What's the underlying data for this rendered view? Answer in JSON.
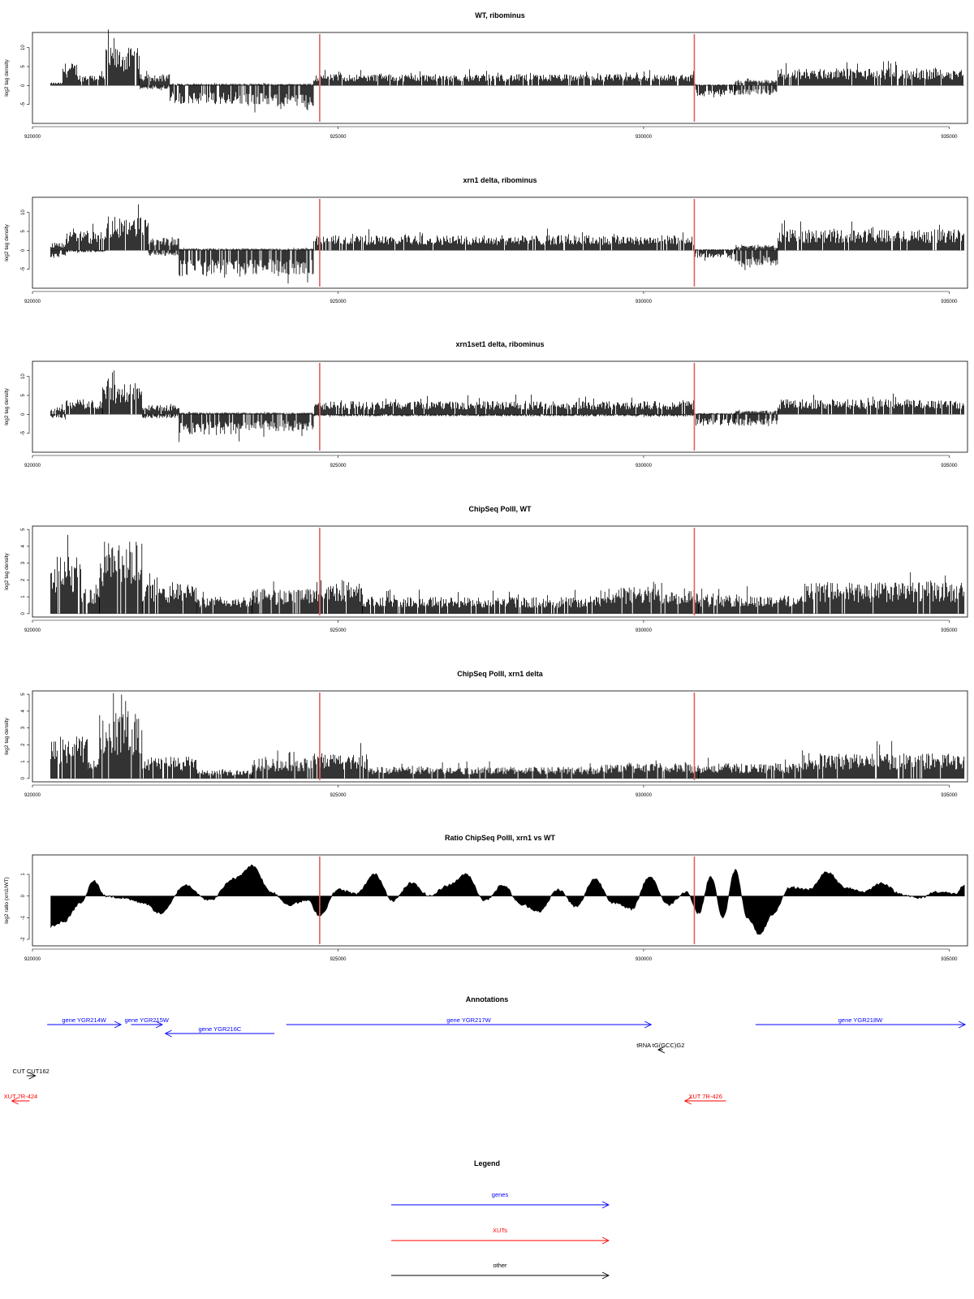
{
  "colors": {
    "genes": "#0000ff",
    "xuts": "#ff0000",
    "other": "#000000",
    "marker": "#e06060",
    "bars": "#000000"
  },
  "x_axis": {
    "range": [
      920000,
      935300
    ],
    "ticks": [
      920000,
      925000,
      930000,
      935000
    ],
    "tick_labels": [
      "920000",
      "925000",
      "930000",
      "935000"
    ]
  },
  "markers": [
    924700,
    930830
  ],
  "chart_data": [
    {
      "type": "bar",
      "title": "WT, ribominus",
      "ylabel": "log2 tag density",
      "ylim": [
        -10,
        14
      ],
      "yticks": [
        -5,
        0,
        5,
        10
      ],
      "ytick_labels": [
        "-5",
        "0",
        "5",
        "10"
      ],
      "x_range": [
        920300,
        935250
      ],
      "segments": [
        {
          "x": [
            920300,
            920500
          ],
          "lo": 0,
          "hi": 0.8
        },
        {
          "x": [
            920500,
            920750
          ],
          "lo": 0,
          "hi": 6
        },
        {
          "x": [
            920750,
            921200
          ],
          "lo": 0,
          "hi": 3
        },
        {
          "x": [
            921200,
            921750
          ],
          "lo": 0,
          "hi": 10
        },
        {
          "x": [
            921750,
            922250
          ],
          "lo": -1,
          "hi": 3
        },
        {
          "x": [
            922250,
            923400
          ],
          "lo": -5,
          "hi": 0.5
        },
        {
          "x": [
            923400,
            924600
          ],
          "lo": -5.5,
          "hi": 0.5
        },
        {
          "x": [
            924600,
            930830
          ],
          "lo": 0,
          "hi": 3
        },
        {
          "x": [
            930830,
            931500
          ],
          "lo": -3,
          "hi": 0.3
        },
        {
          "x": [
            931500,
            932200
          ],
          "lo": -2.5,
          "hi": 1.5
        },
        {
          "x": [
            932200,
            935250
          ],
          "lo": 0,
          "hi": 4.5
        }
      ]
    },
    {
      "type": "bar",
      "title": "xrn1 delta, ribominus",
      "ylabel": "log2 tag density",
      "ylim": [
        -10,
        14
      ],
      "yticks": [
        -5,
        0,
        5,
        10
      ],
      "ytick_labels": [
        "-5",
        "0",
        "5",
        "10"
      ],
      "x_range": [
        920300,
        935250
      ],
      "segments": [
        {
          "x": [
            920300,
            920550
          ],
          "lo": -2,
          "hi": 2
        },
        {
          "x": [
            920550,
            921200
          ],
          "lo": -0.5,
          "hi": 5
        },
        {
          "x": [
            921200,
            921900
          ],
          "lo": 0,
          "hi": 9
        },
        {
          "x": [
            921900,
            922400
          ],
          "lo": -1.5,
          "hi": 3.5
        },
        {
          "x": [
            922400,
            923400
          ],
          "lo": -7,
          "hi": 0.5
        },
        {
          "x": [
            923400,
            924600
          ],
          "lo": -6.5,
          "hi": 0.5
        },
        {
          "x": [
            924600,
            930830
          ],
          "lo": 0,
          "hi": 4
        },
        {
          "x": [
            930830,
            931500
          ],
          "lo": -2,
          "hi": 0.3
        },
        {
          "x": [
            931500,
            932200
          ],
          "lo": -4,
          "hi": 1.5
        },
        {
          "x": [
            932200,
            935250
          ],
          "lo": 0,
          "hi": 5.5
        }
      ]
    },
    {
      "type": "bar",
      "title": "xrn1set1 delta, ribominus",
      "ylabel": "log2 tag density",
      "ylim": [
        -10,
        14
      ],
      "yticks": [
        -5,
        0,
        5,
        10
      ],
      "ytick_labels": [
        "-5",
        "0",
        "5",
        "10"
      ],
      "x_range": [
        920300,
        935250
      ],
      "segments": [
        {
          "x": [
            920300,
            920550
          ],
          "lo": -1,
          "hi": 2
        },
        {
          "x": [
            920550,
            921150
          ],
          "lo": 0,
          "hi": 4
        },
        {
          "x": [
            921150,
            921800
          ],
          "lo": 0,
          "hi": 8
        },
        {
          "x": [
            921800,
            922400
          ],
          "lo": -1,
          "hi": 2.5
        },
        {
          "x": [
            922400,
            923400
          ],
          "lo": -5.5,
          "hi": 0.5
        },
        {
          "x": [
            923400,
            924600
          ],
          "lo": -4.5,
          "hi": 0.5
        },
        {
          "x": [
            924600,
            930830
          ],
          "lo": -0.5,
          "hi": 3.5
        },
        {
          "x": [
            930830,
            931500
          ],
          "lo": -3,
          "hi": 0.3
        },
        {
          "x": [
            931500,
            932200
          ],
          "lo": -3,
          "hi": 1
        },
        {
          "x": [
            932200,
            935250
          ],
          "lo": 0,
          "hi": 4
        }
      ]
    },
    {
      "type": "bar",
      "title": "ChipSeq PolII, WT",
      "ylabel": "log2 tag density",
      "ylim": [
        -0.2,
        5.2
      ],
      "yticks": [
        0,
        1,
        2,
        3,
        4,
        5
      ],
      "ytick_labels": [
        "0",
        "1",
        "2",
        "3",
        "4",
        "5"
      ],
      "x_range": [
        920300,
        935250
      ],
      "segments": [
        {
          "x": [
            920300,
            920800
          ],
          "lo": 0,
          "hi": 3.5
        },
        {
          "x": [
            920800,
            921100
          ],
          "lo": 0,
          "hi": 1.5
        },
        {
          "x": [
            921100,
            921800
          ],
          "lo": 0,
          "hi": 4.3
        },
        {
          "x": [
            921800,
            922700
          ],
          "lo": 0,
          "hi": 1.8
        },
        {
          "x": [
            922700,
            923600
          ],
          "lo": 0,
          "hi": 1
        },
        {
          "x": [
            923600,
            924600
          ],
          "lo": 0,
          "hi": 1.5
        },
        {
          "x": [
            924600,
            925400
          ],
          "lo": 0,
          "hi": 2
        },
        {
          "x": [
            925400,
            929300
          ],
          "lo": 0,
          "hi": 1
        },
        {
          "x": [
            929300,
            930900
          ],
          "lo": 0,
          "hi": 1.6
        },
        {
          "x": [
            930900,
            932600
          ],
          "lo": 0,
          "hi": 1.1
        },
        {
          "x": [
            932600,
            935250
          ],
          "lo": 0,
          "hi": 1.9
        }
      ]
    },
    {
      "type": "bar",
      "title": "ChipSeq PolII, xrn1 delta",
      "ylabel": "log2 tag density",
      "ylim": [
        -0.2,
        5.2
      ],
      "yticks": [
        0,
        1,
        2,
        3,
        4,
        5
      ],
      "ytick_labels": [
        "0",
        "1",
        "2",
        "3",
        "4",
        "5"
      ],
      "x_range": [
        920300,
        935250
      ],
      "segments": [
        {
          "x": [
            920300,
            920900
          ],
          "lo": 0,
          "hi": 2.5
        },
        {
          "x": [
            920900,
            921100
          ],
          "lo": 0,
          "hi": 1.2
        },
        {
          "x": [
            921100,
            921800
          ],
          "lo": 0,
          "hi": 4
        },
        {
          "x": [
            921800,
            922700
          ],
          "lo": 0,
          "hi": 1.3
        },
        {
          "x": [
            922700,
            923600
          ],
          "lo": 0,
          "hi": 0.5
        },
        {
          "x": [
            923600,
            924600
          ],
          "lo": 0,
          "hi": 1.2
        },
        {
          "x": [
            924600,
            925500
          ],
          "lo": 0,
          "hi": 1.5
        },
        {
          "x": [
            925500,
            929300
          ],
          "lo": 0,
          "hi": 0.7
        },
        {
          "x": [
            929300,
            930900
          ],
          "lo": 0,
          "hi": 0.9
        },
        {
          "x": [
            930900,
            932600
          ],
          "lo": 0,
          "hi": 0.9
        },
        {
          "x": [
            932600,
            935250
          ],
          "lo": 0,
          "hi": 1.5
        }
      ]
    },
    {
      "type": "area",
      "title": "Ratio ChipSeq PolII, xrn1 vs WT",
      "ylabel": "log2 ratio (xrn1/WT)",
      "ylim": [
        -2.3,
        1.9
      ],
      "yticks": [
        -2,
        -1,
        0,
        1
      ],
      "ytick_labels": [
        "-2",
        "-1",
        "0",
        "1"
      ],
      "x": [
        920300,
        920500,
        920800,
        921000,
        921200,
        921500,
        921800,
        922100,
        922500,
        922900,
        923300,
        923600,
        923900,
        924200,
        924500,
        924700,
        925000,
        925300,
        925600,
        925900,
        926200,
        926500,
        926800,
        927100,
        927400,
        927700,
        928000,
        928300,
        928600,
        928900,
        929200,
        929500,
        929800,
        930100,
        930400,
        930700,
        930900,
        931100,
        931300,
        931500,
        931700,
        931900,
        932100,
        932400,
        932700,
        933000,
        933300,
        933600,
        933900,
        934200,
        934500,
        934800,
        935100,
        935250
      ],
      "y": [
        -1.4,
        -1.2,
        -0.3,
        0.7,
        0.0,
        -0.1,
        -0.3,
        -0.8,
        0.5,
        -0.2,
        0.8,
        1.4,
        0.2,
        -0.4,
        -0.2,
        -0.9,
        0.3,
        0.1,
        1.0,
        -0.2,
        0.6,
        0.0,
        0.5,
        1.0,
        -0.2,
        0.5,
        -0.4,
        -0.7,
        0.3,
        -0.5,
        0.8,
        -0.3,
        -0.6,
        0.9,
        -0.4,
        0.2,
        -0.8,
        0.9,
        -1.0,
        1.2,
        -1.0,
        -1.8,
        -0.9,
        0.4,
        0.3,
        1.1,
        0.4,
        0.2,
        0.6,
        0.1,
        -0.1,
        0.2,
        0.1,
        0.5
      ]
    }
  ],
  "annotations": {
    "title": "Annotations",
    "x_range": [
      919800,
      936300
    ],
    "features": [
      {
        "label": "gene YGR214W",
        "start": 920600,
        "end": 921850,
        "strand": "+",
        "kind": "genes",
        "row": 0
      },
      {
        "label": "gene YGR215W",
        "start": 922020,
        "end": 922550,
        "strand": "+",
        "kind": "genes",
        "row": 0
      },
      {
        "label": "gene YGR216C",
        "start": 922600,
        "end": 924450,
        "strand": "-",
        "kind": "genes",
        "row": 1
      },
      {
        "label": "gene YGR217W",
        "start": 924650,
        "end": 930830,
        "strand": "+",
        "kind": "genes",
        "row": 0
      },
      {
        "label": "gene YGR218W",
        "start": 932600,
        "end": 936150,
        "strand": "+",
        "kind": "genes",
        "row": 0
      },
      {
        "label": "tRNA tG(GCC)G2",
        "start": 930950,
        "end": 931030,
        "strand": "-",
        "kind": "other",
        "row": 2
      },
      {
        "label": "CUT CUT162",
        "start": 920250,
        "end": 920400,
        "strand": "+",
        "kind": "other",
        "row": 3
      },
      {
        "label": "XUT 7R-424",
        "start": 920000,
        "end": 920300,
        "strand": "-",
        "kind": "xuts",
        "row": 4
      },
      {
        "label": "XUT 7R-426",
        "start": 931400,
        "end": 932100,
        "strand": "-",
        "kind": "xuts",
        "row": 4
      }
    ]
  },
  "legend": {
    "title": "Legend",
    "items": [
      {
        "label": "genes",
        "kind": "genes"
      },
      {
        "label": "XUTs",
        "kind": "xuts"
      },
      {
        "label": "other",
        "kind": "other"
      }
    ]
  }
}
